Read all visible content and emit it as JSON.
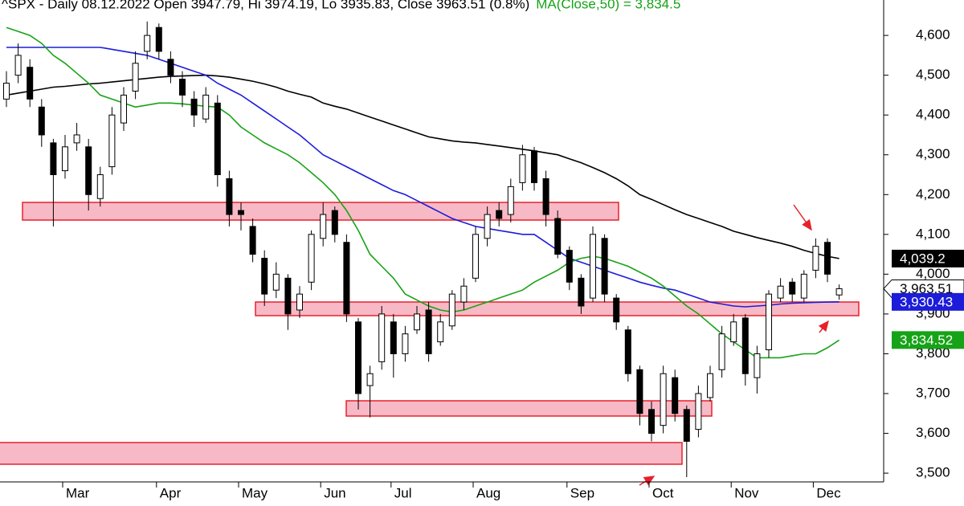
{
  "chart_data": {
    "type": "candlestick",
    "title": "^SPX - Daily 08.12.2022 Open 3947.79, Hi 3974.19, Lo 3935.83, Close 3963.51 (0.8%)",
    "subtitle": "MA(Close,50) = 3,834.5",
    "categories": [
      null,
      null,
      null,
      null,
      null,
      "Mar",
      null,
      null,
      null,
      null,
      null,
      null,
      null,
      "Apr",
      null,
      null,
      null,
      null,
      null,
      null,
      "May",
      null,
      null,
      null,
      null,
      null,
      null,
      "Jun",
      null,
      null,
      null,
      null,
      null,
      "Jul",
      null,
      null,
      null,
      null,
      null,
      null,
      "Aug",
      null,
      null,
      null,
      null,
      null,
      null,
      null,
      "Sep",
      null,
      null,
      null,
      null,
      null,
      null,
      "Oct",
      null,
      null,
      null,
      null,
      null,
      null,
      "Nov",
      null,
      null,
      null,
      null,
      null,
      null,
      "Dec",
      null,
      null
    ],
    "open": [
      4440,
      4500,
      4520,
      4420,
      4330,
      4260,
      4330,
      4320,
      4190,
      4270,
      4380,
      4460,
      4560,
      4620,
      4540,
      4490,
      4440,
      4390,
      4430,
      4240,
      4160,
      4120,
      4040,
      3960,
      3990,
      3910,
      3980,
      4090,
      4160,
      4080,
      3880,
      3720,
      3780,
      3880,
      3800,
      3860,
      3910,
      3830,
      3870,
      3930,
      3990,
      4090,
      4160,
      4150,
      4230,
      4310,
      4240,
      4140,
      4060,
      3990,
      3940,
      4090,
      3940,
      3860,
      3760,
      3660,
      3620,
      3740,
      3660,
      3610,
      3690,
      3760,
      3830,
      3890,
      3740,
      3810,
      3940,
      3980,
      3940,
      4010,
      4080,
      3947.79
    ],
    "high": [
      4510,
      4580,
      4540,
      4440,
      4340,
      4350,
      4380,
      4340,
      4270,
      4420,
      4470,
      4560,
      4635,
      4630,
      4560,
      4510,
      4460,
      4470,
      4450,
      4260,
      4180,
      4140,
      4060,
      4030,
      4000,
      3970,
      4110,
      4180,
      4170,
      4100,
      3890,
      3770,
      3920,
      3900,
      3870,
      3920,
      3930,
      3900,
      3960,
      3990,
      4120,
      4170,
      4180,
      4240,
      4325,
      4320,
      4260,
      4160,
      4070,
      4000,
      4120,
      4100,
      3950,
      3870,
      3770,
      3680,
      3770,
      3760,
      3670,
      3720,
      3770,
      3870,
      3900,
      3900,
      3820,
      3960,
      3990,
      3990,
      4010,
      4090,
      4090,
      3974.19
    ],
    "low": [
      4420,
      4480,
      4420,
      4320,
      4120,
      4240,
      4310,
      4160,
      4170,
      4250,
      4360,
      4440,
      4540,
      4540,
      4480,
      4420,
      4370,
      4380,
      4220,
      4120,
      4110,
      4030,
      3920,
      3940,
      3860,
      3890,
      3960,
      4070,
      4080,
      3880,
      3660,
      3640,
      3760,
      3740,
      3780,
      3850,
      3780,
      3820,
      3860,
      3910,
      3980,
      4070,
      4120,
      4130,
      4210,
      4210,
      4120,
      4040,
      3960,
      3900,
      3930,
      3930,
      3860,
      3730,
      3620,
      3580,
      3600,
      3630,
      3490,
      3590,
      3680,
      3740,
      3820,
      3720,
      3700,
      3790,
      3930,
      3930,
      3930,
      3990,
      3980,
      3935.83
    ],
    "close": [
      4480,
      4550,
      4440,
      4350,
      4250,
      4320,
      4350,
      4200,
      4250,
      4400,
      4450,
      4530,
      4600,
      4560,
      4500,
      4450,
      4400,
      4450,
      4250,
      4150,
      4150,
      4050,
      3950,
      4000,
      3900,
      3950,
      4100,
      4150,
      4100,
      3900,
      3700,
      3750,
      3900,
      3800,
      3850,
      3900,
      3800,
      3880,
      3950,
      3970,
      4100,
      4150,
      4140,
      4220,
      4300,
      4230,
      4150,
      4050,
      3980,
      3920,
      4100,
      3950,
      3880,
      3750,
      3650,
      3600,
      3750,
      3650,
      3580,
      3700,
      3750,
      3850,
      3880,
      3750,
      3800,
      3950,
      3970,
      3950,
      4000,
      4070,
      4000,
      3963.51
    ],
    "close_label": "3,963.51",
    "up_color": "#ffffff",
    "down_color": "#000000",
    "lines": [
      {
        "color": "#000000",
        "last_label": "4,039.2",
        "values": [
          4450,
          4455,
          4460,
          4465,
          4470,
          4472,
          4475,
          4478,
          4480,
          4483,
          4486,
          4489,
          4492,
          4495,
          4497,
          4498,
          4499,
          4500,
          4498,
          4495,
          4490,
          4485,
          4478,
          4470,
          4460,
          4452,
          4445,
          4430,
          4422,
          4415,
          4405,
          4395,
          4385,
          4375,
          4365,
          4355,
          4345,
          4340,
          4335,
          4332,
          4330,
          4326,
          4322,
          4318,
          4314,
          4310,
          4305,
          4300,
          4290,
          4280,
          4268,
          4255,
          4240,
          4222,
          4200,
          4188,
          4175,
          4162,
          4150,
          4140,
          4130,
          4120,
          4108,
          4100,
          4092,
          4085,
          4078,
          4070,
          4060,
          4052,
          4045,
          4039.2
        ]
      },
      {
        "color": "#1c1cd9",
        "last_label": "3,930.43",
        "values": [
          4570,
          4570,
          4570,
          4570,
          4570,
          4570,
          4570,
          4570,
          4570,
          4565,
          4560,
          4555,
          4550,
          4540,
          4530,
          4520,
          4510,
          4500,
          4480,
          4465,
          4450,
          4430,
          4410,
          4390,
          4370,
          4350,
          4325,
          4300,
          4285,
          4270,
          4255,
          4240,
          4225,
          4210,
          4200,
          4185,
          4170,
          4155,
          4140,
          4130,
          4120,
          4115,
          4110,
          4105,
          4100,
          4100,
          4080,
          4060,
          4040,
          4030,
          4020,
          4010,
          4000,
          3990,
          3980,
          3972,
          3965,
          3960,
          3950,
          3940,
          3930,
          3925,
          3920,
          3918,
          3920,
          3922,
          3925,
          3927,
          3928,
          3929,
          3930,
          3930.43
        ]
      },
      {
        "color": "#17a317",
        "last_label": "3,834.52",
        "values": [
          4620,
          4610,
          4600,
          4580,
          4550,
          4530,
          4505,
          4480,
          4450,
          4440,
          4430,
          4420,
          4425,
          4430,
          4430,
          4428,
          4425,
          4422,
          4420,
          4400,
          4370,
          4350,
          4330,
          4315,
          4300,
          4280,
          4255,
          4230,
          4200,
          4160,
          4110,
          4050,
          4020,
          3990,
          3950,
          3935,
          3920,
          3910,
          3905,
          3910,
          3920,
          3930,
          3940,
          3950,
          3960,
          3980,
          3995,
          4010,
          4030,
          4040,
          4045,
          4040,
          4030,
          4020,
          4005,
          3990,
          3970,
          3945,
          3920,
          3900,
          3875,
          3850,
          3830,
          3810,
          3790,
          3790,
          3790,
          3795,
          3800,
          3800,
          3815,
          3834.52
        ]
      }
    ],
    "ylim": [
      3478,
      4689
    ],
    "yticks": [
      {
        "value": 3500,
        "label": "3,500"
      },
      {
        "value": 3600,
        "label": "3,600"
      },
      {
        "value": 3700,
        "label": "3,700"
      },
      {
        "value": 3800,
        "label": "3,800"
      },
      {
        "value": 3900,
        "label": "3,900"
      },
      {
        "value": 4000,
        "label": "4,000"
      },
      {
        "value": 4100,
        "label": "4,100"
      },
      {
        "value": 4200,
        "label": "4,200"
      },
      {
        "value": 4300,
        "label": "4,300"
      },
      {
        "value": 4400,
        "label": "4,400"
      },
      {
        "value": 4500,
        "label": "4,500"
      },
      {
        "value": 4600,
        "label": "4,600"
      }
    ]
  }
}
